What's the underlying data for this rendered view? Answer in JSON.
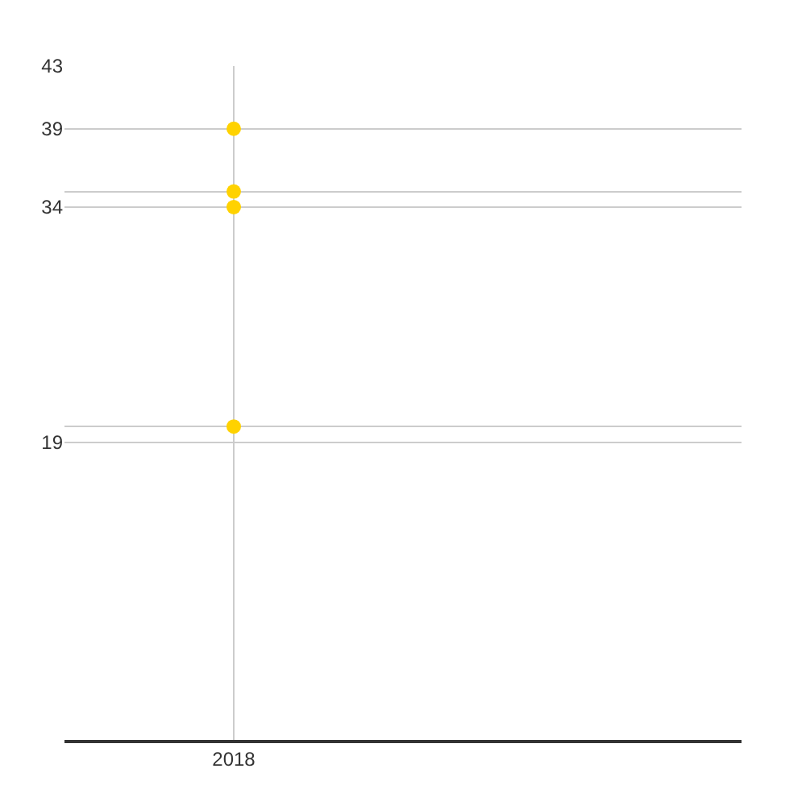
{
  "chart_data": {
    "type": "scatter",
    "categories": [
      "2018",
      null
    ],
    "series": [
      {
        "color": "#ffd200",
        "values": [
          39,
          null
        ]
      },
      {
        "color": "#ffd200",
        "values": [
          35,
          null
        ]
      },
      {
        "color": "#ffd200",
        "values": [
          34,
          null
        ]
      },
      {
        "color": "#ffd200",
        "values": [
          20,
          null
        ]
      }
    ],
    "marker": "circle",
    "ylim": [
      0,
      43
    ],
    "yticks": [
      19,
      {
        "value": 20,
        "label": null
      },
      34,
      {
        "value": 35,
        "label": null
      },
      39,
      43
    ],
    "grid": true
  }
}
